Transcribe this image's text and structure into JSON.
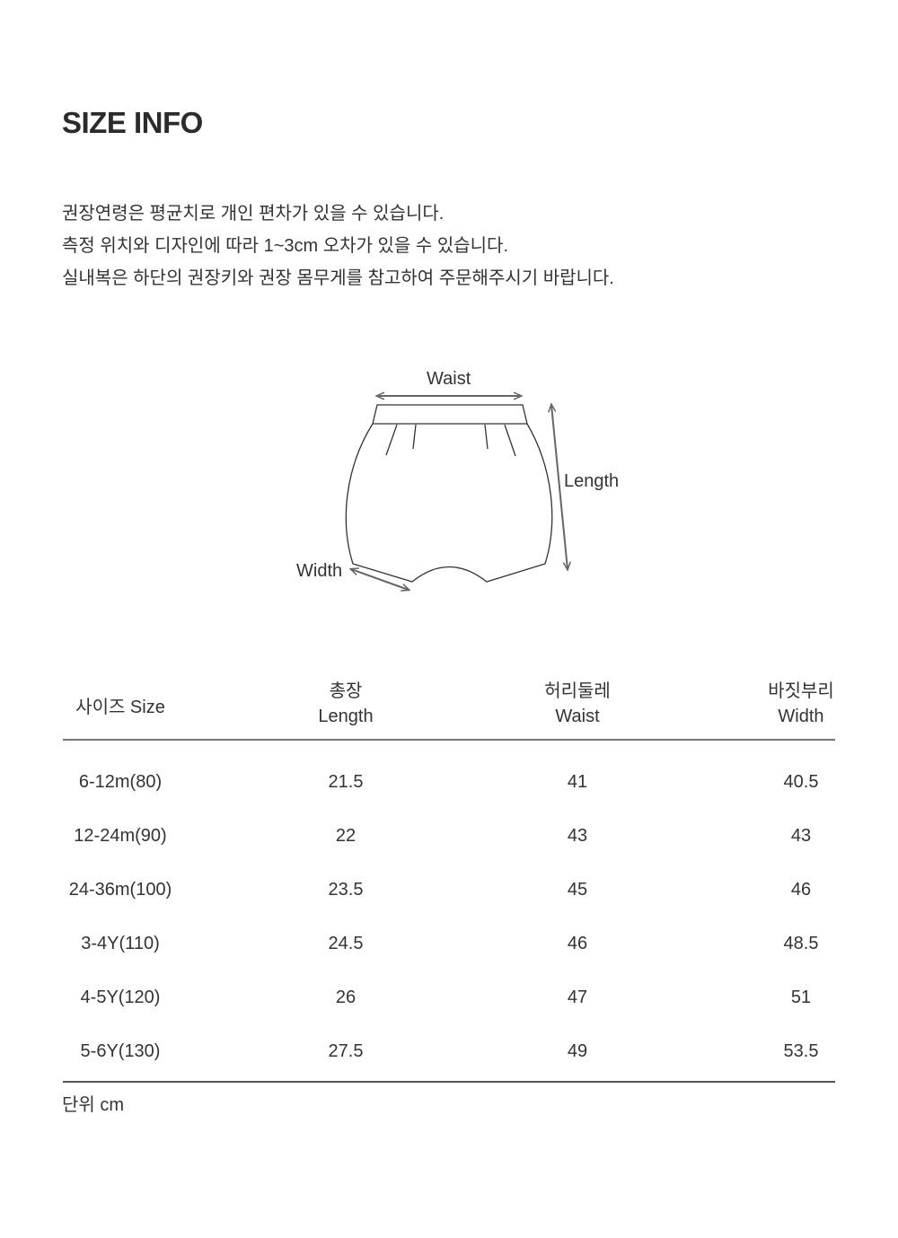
{
  "title": "SIZE INFO",
  "notes": [
    "권장연령은 평균치로 개인 편차가 있을 수 있습니다.",
    "측정 위치와 디자인에 따라 1~3cm 오차가 있을 수 있습니다.",
    "실내복은 하단의 권장키와 권장 몸무게를 참고하여 주문해주시기 바랍니다."
  ],
  "diagram": {
    "waist": "Waist",
    "length": "Length",
    "width": "Width",
    "line_color": "#333333",
    "arrow_color": "#666666"
  },
  "table": {
    "headers": [
      {
        "ko": "사이즈 Size",
        "en": ""
      },
      {
        "ko": "총장",
        "en": "Length"
      },
      {
        "ko": "허리둘레",
        "en": "Waist"
      },
      {
        "ko": "바짓부리",
        "en": "Width"
      }
    ],
    "rows": [
      [
        "6-12m(80)",
        "21.5",
        "41",
        "40.5"
      ],
      [
        "12-24m(90)",
        "22",
        "43",
        "43"
      ],
      [
        "24-36m(100)",
        "23.5",
        "45",
        "46"
      ],
      [
        "3-4Y(110)",
        "24.5",
        "46",
        "48.5"
      ],
      [
        "4-5Y(120)",
        "26",
        "47",
        "51"
      ],
      [
        "5-6Y(130)",
        "27.5",
        "49",
        "53.5"
      ]
    ],
    "unit": "단위 cm"
  }
}
